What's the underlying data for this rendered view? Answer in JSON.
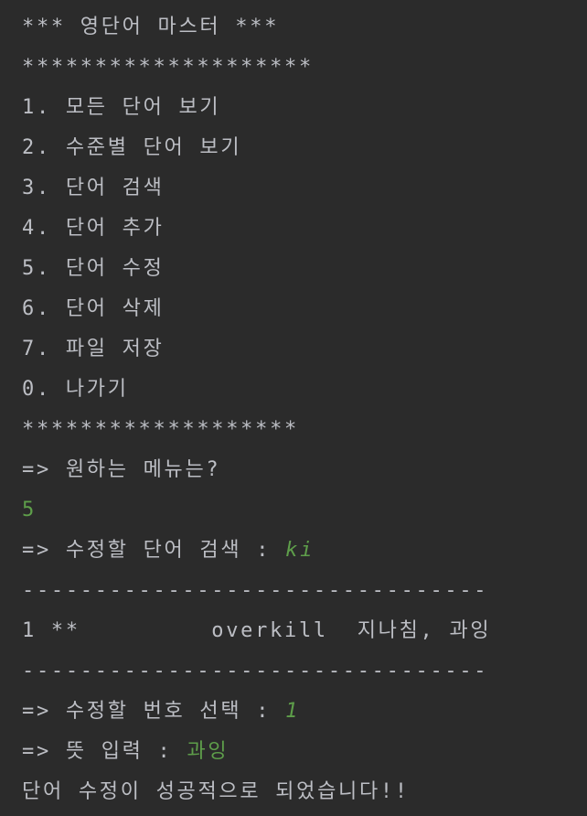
{
  "console": {
    "lines": [
      {
        "text": "*** 영단어 마스터 ***"
      },
      {
        "text": "********************"
      },
      {
        "text": "1. 모든 단어 보기"
      },
      {
        "text": "2. 수준별 단어 보기"
      },
      {
        "text": "3. 단어 검색"
      },
      {
        "text": "4. 단어 추가"
      },
      {
        "text": "5. 단어 수정"
      },
      {
        "text": "6. 단어 삭제"
      },
      {
        "text": "7. 파일 저장"
      },
      {
        "text": "0. 나가기"
      },
      {
        "text": "*******************"
      },
      {
        "text": "=> 원하는 메뉴는?"
      },
      {
        "input": "5"
      },
      {
        "text": "=> 수정할 단어 검색 : ",
        "input": "ki"
      },
      {
        "text": "--------------------------------"
      },
      {
        "text": "1 **         overkill  지나침, 과잉"
      },
      {
        "text": "--------------------------------"
      },
      {
        "text": "=> 수정할 번호 선택 : ",
        "input": "1"
      },
      {
        "text": "=> 뜻 입력 : ",
        "input": "과잉"
      },
      {
        "text": "단어 수정이 성공적으로 되었습니다!!"
      }
    ]
  }
}
